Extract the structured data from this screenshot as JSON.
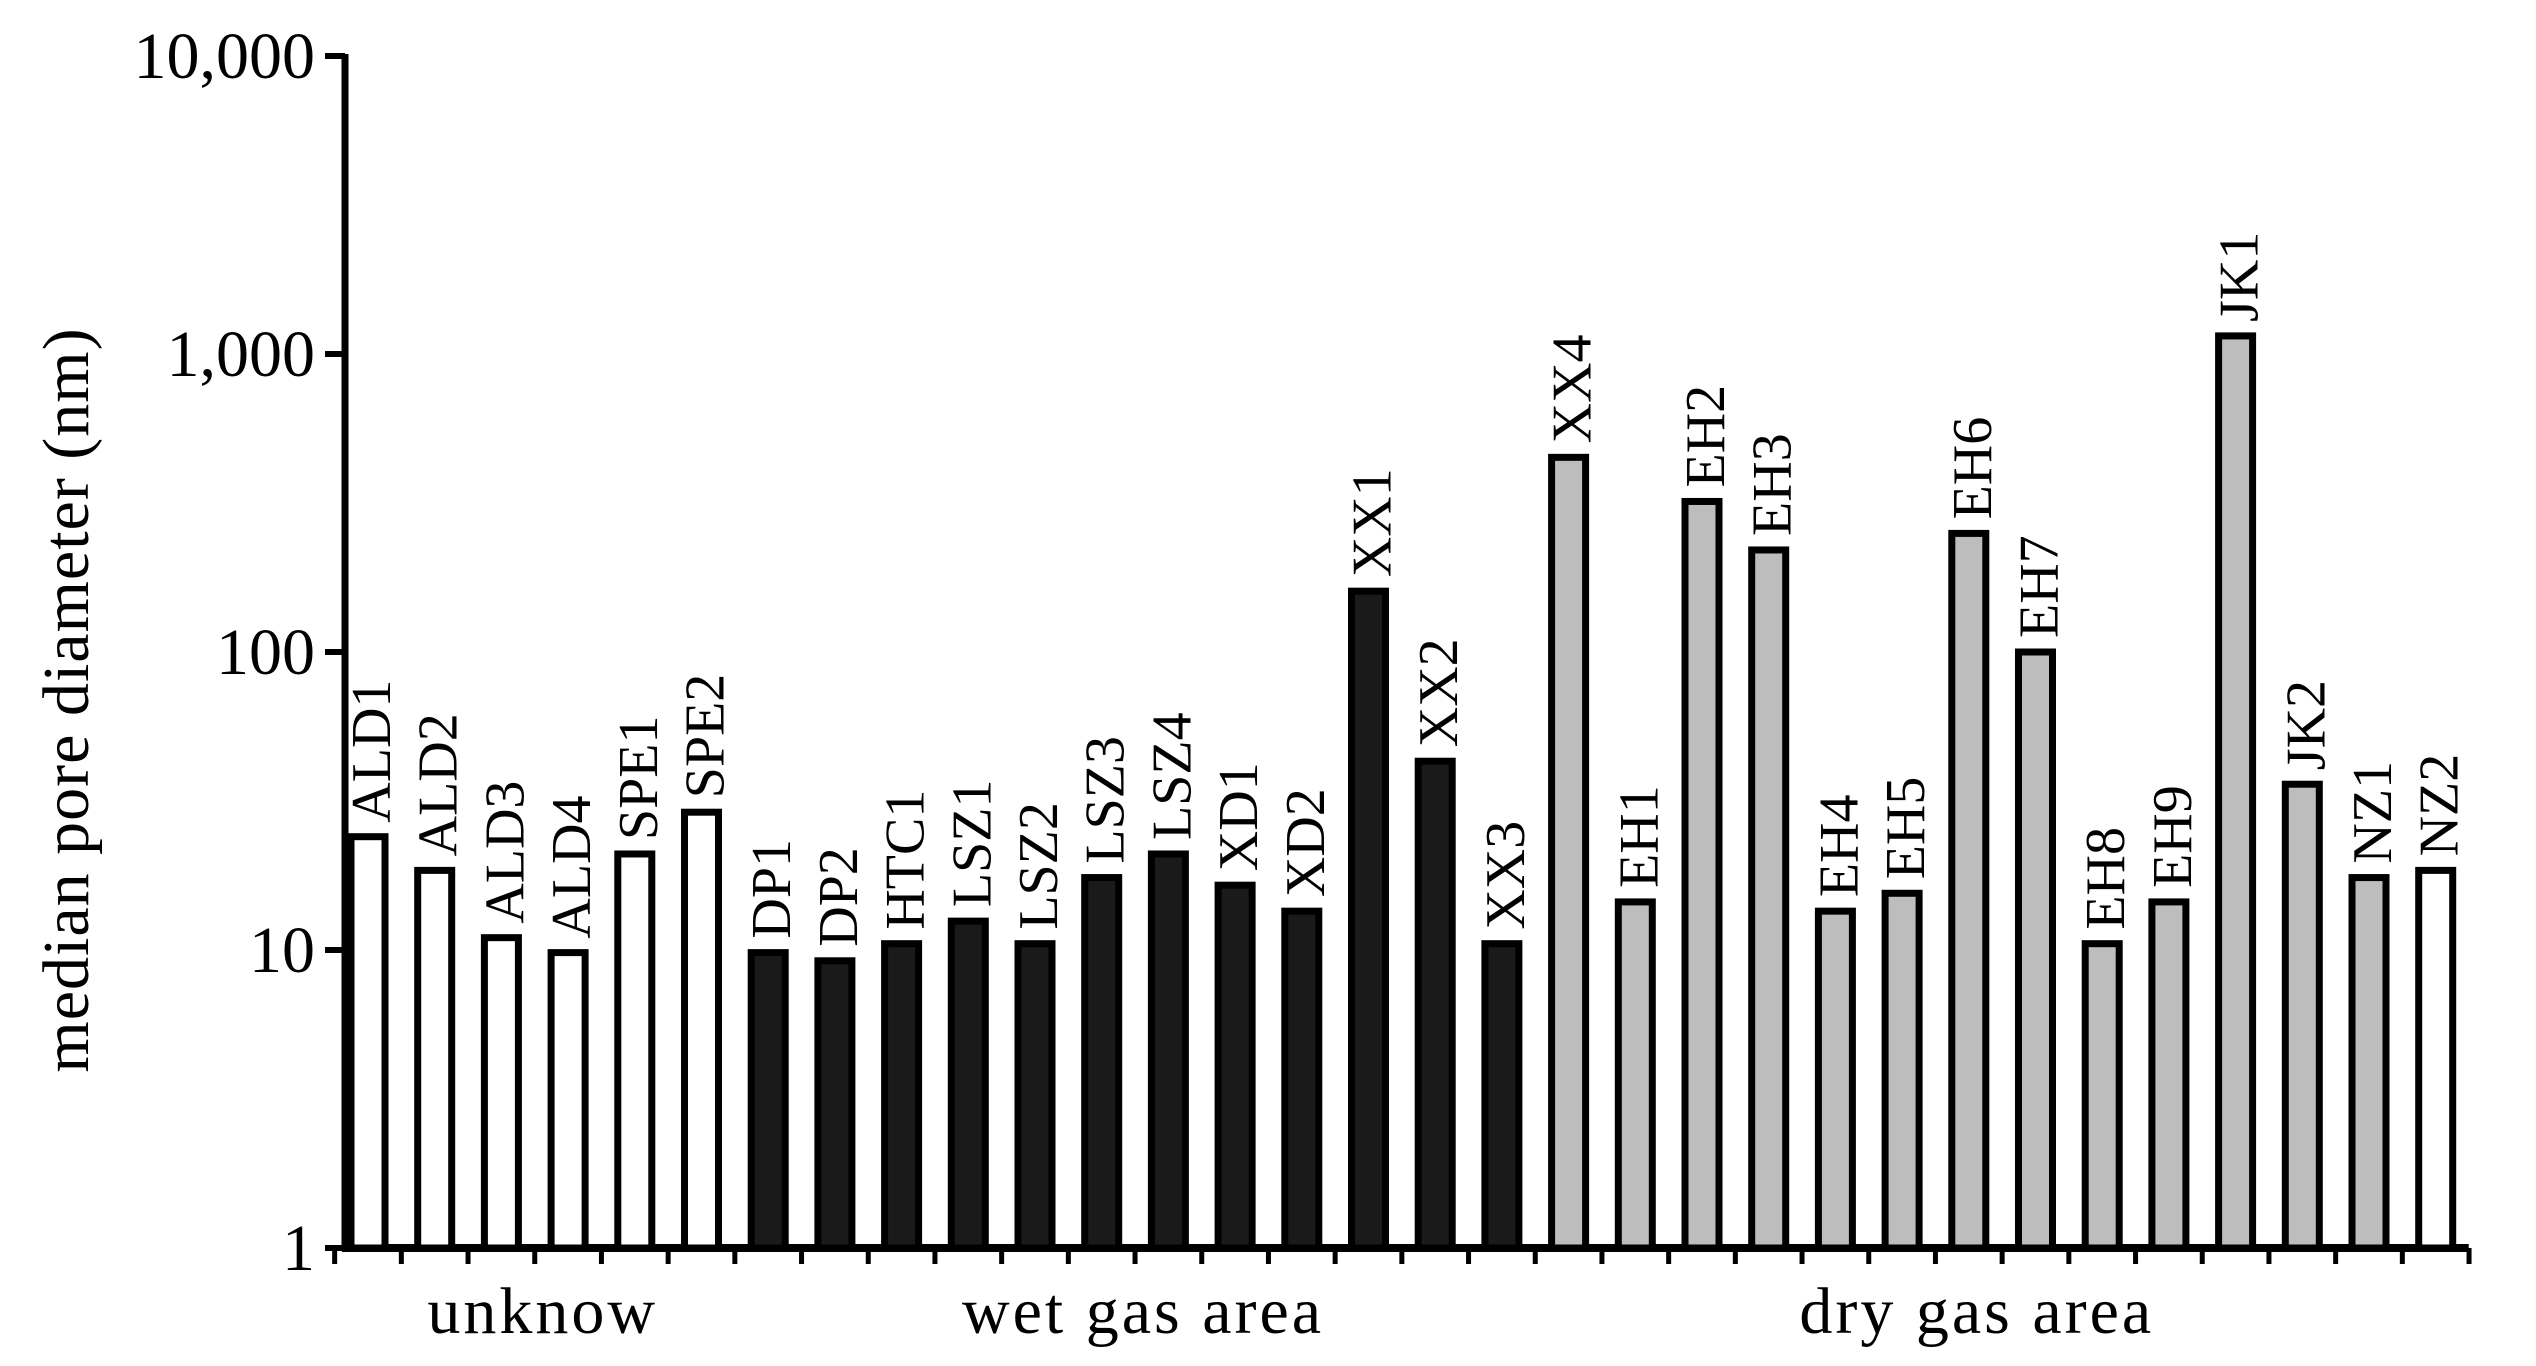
{
  "chart_data": {
    "type": "bar",
    "ylabel": "median pore diameter (nm)",
    "yscale": "log",
    "ylim": [
      1,
      10000
    ],
    "yticks": [
      1,
      10,
      100,
      1000,
      10000
    ],
    "ytick_labels": [
      "1",
      "10",
      "100",
      "1,000",
      "10,000"
    ],
    "grid": false,
    "legend": "none",
    "groups": [
      {
        "name": "unknow",
        "color": "#ffffff",
        "start": 0,
        "end": 5
      },
      {
        "name": "wet gas area",
        "color": "#1a1a1a",
        "start": 6,
        "end": 17
      },
      {
        "name": "dry gas area",
        "color": "#bdbdbd",
        "start": 18,
        "end": 30
      }
    ],
    "categories": [
      "ALD1",
      "ALD2",
      "ALD3",
      "ALD4",
      "SPE1",
      "SPE2",
      "DP1",
      "DP2",
      "HTC1",
      "LSZ1",
      "LSZ2",
      "LSZ3",
      "LSZ4",
      "XD1",
      "XD2",
      "XX1",
      "XX2",
      "XX3",
      "XX4",
      "EH1",
      "EH2",
      "EH3",
      "EH4",
      "EH5",
      "EH6",
      "EH7",
      "EH8",
      "EH9",
      "JK1",
      "JK2",
      "NZ1",
      "NZ2"
    ],
    "values": [
      24,
      18.5,
      11,
      9.8,
      21,
      29,
      9.8,
      9.2,
      10.5,
      12.5,
      10.5,
      17.5,
      21,
      16.5,
      13.5,
      160,
      43,
      10.5,
      450,
      14.5,
      320,
      220,
      13.5,
      15.5,
      250,
      100,
      10.5,
      14.5,
      1150,
      36,
      17.5,
      18.5
    ]
  }
}
